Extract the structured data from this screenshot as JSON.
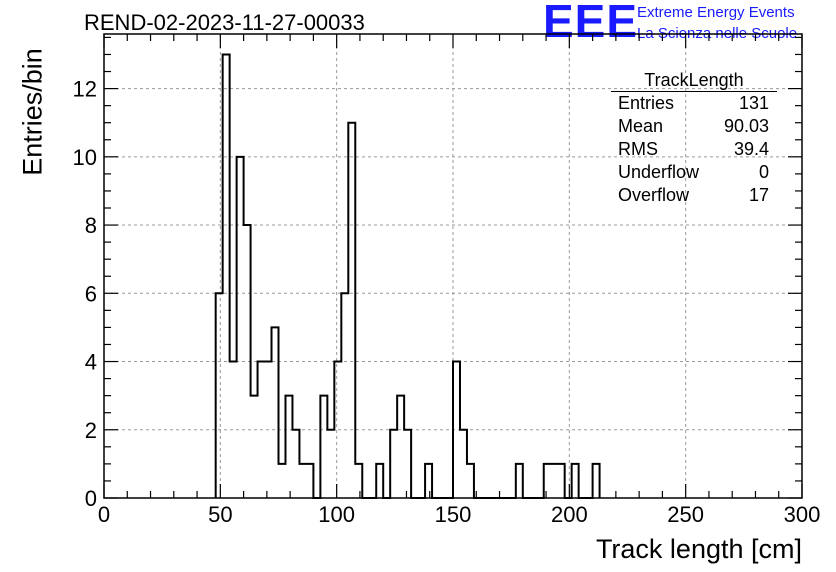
{
  "title": "REND-02-2023-11-27-00033",
  "logo": {
    "mark": "EEE",
    "line1": "Extreme Energy Events",
    "line2": "La Scienza nelle Scuole",
    "color": "#1a1aff"
  },
  "stats_box": {
    "title": "TrackLength",
    "rows": [
      {
        "label": "Entries",
        "value": "131"
      },
      {
        "label": "Mean",
        "value": "90.03"
      },
      {
        "label": "RMS",
        "value": "39.4"
      },
      {
        "label": "Underflow",
        "value": "0"
      },
      {
        "label": "Overflow",
        "value": "17"
      }
    ]
  },
  "chart_data": {
    "type": "bar",
    "histogram": true,
    "xlabel": "Track length [cm]",
    "ylabel": "Entries/bin",
    "xlim": [
      0,
      300
    ],
    "ylim": [
      0,
      13.6
    ],
    "bin_width": 3,
    "grid": true,
    "x_ticks": [
      0,
      50,
      100,
      150,
      200,
      250,
      300
    ],
    "y_ticks": [
      0,
      2,
      4,
      6,
      8,
      10,
      12
    ],
    "bin_edges_start": 48,
    "values": [
      6,
      13,
      4,
      10,
      8,
      3,
      4,
      4,
      5,
      1,
      3,
      2,
      1,
      1,
      0,
      3,
      2,
      4,
      6,
      11,
      1,
      0,
      0,
      1,
      0,
      2,
      3,
      2,
      0,
      0,
      1,
      0,
      0,
      0,
      4,
      2,
      1,
      0,
      0,
      0,
      0,
      0,
      0,
      1,
      0,
      0,
      0,
      1,
      1,
      1,
      0,
      1,
      0,
      0,
      1
    ]
  }
}
